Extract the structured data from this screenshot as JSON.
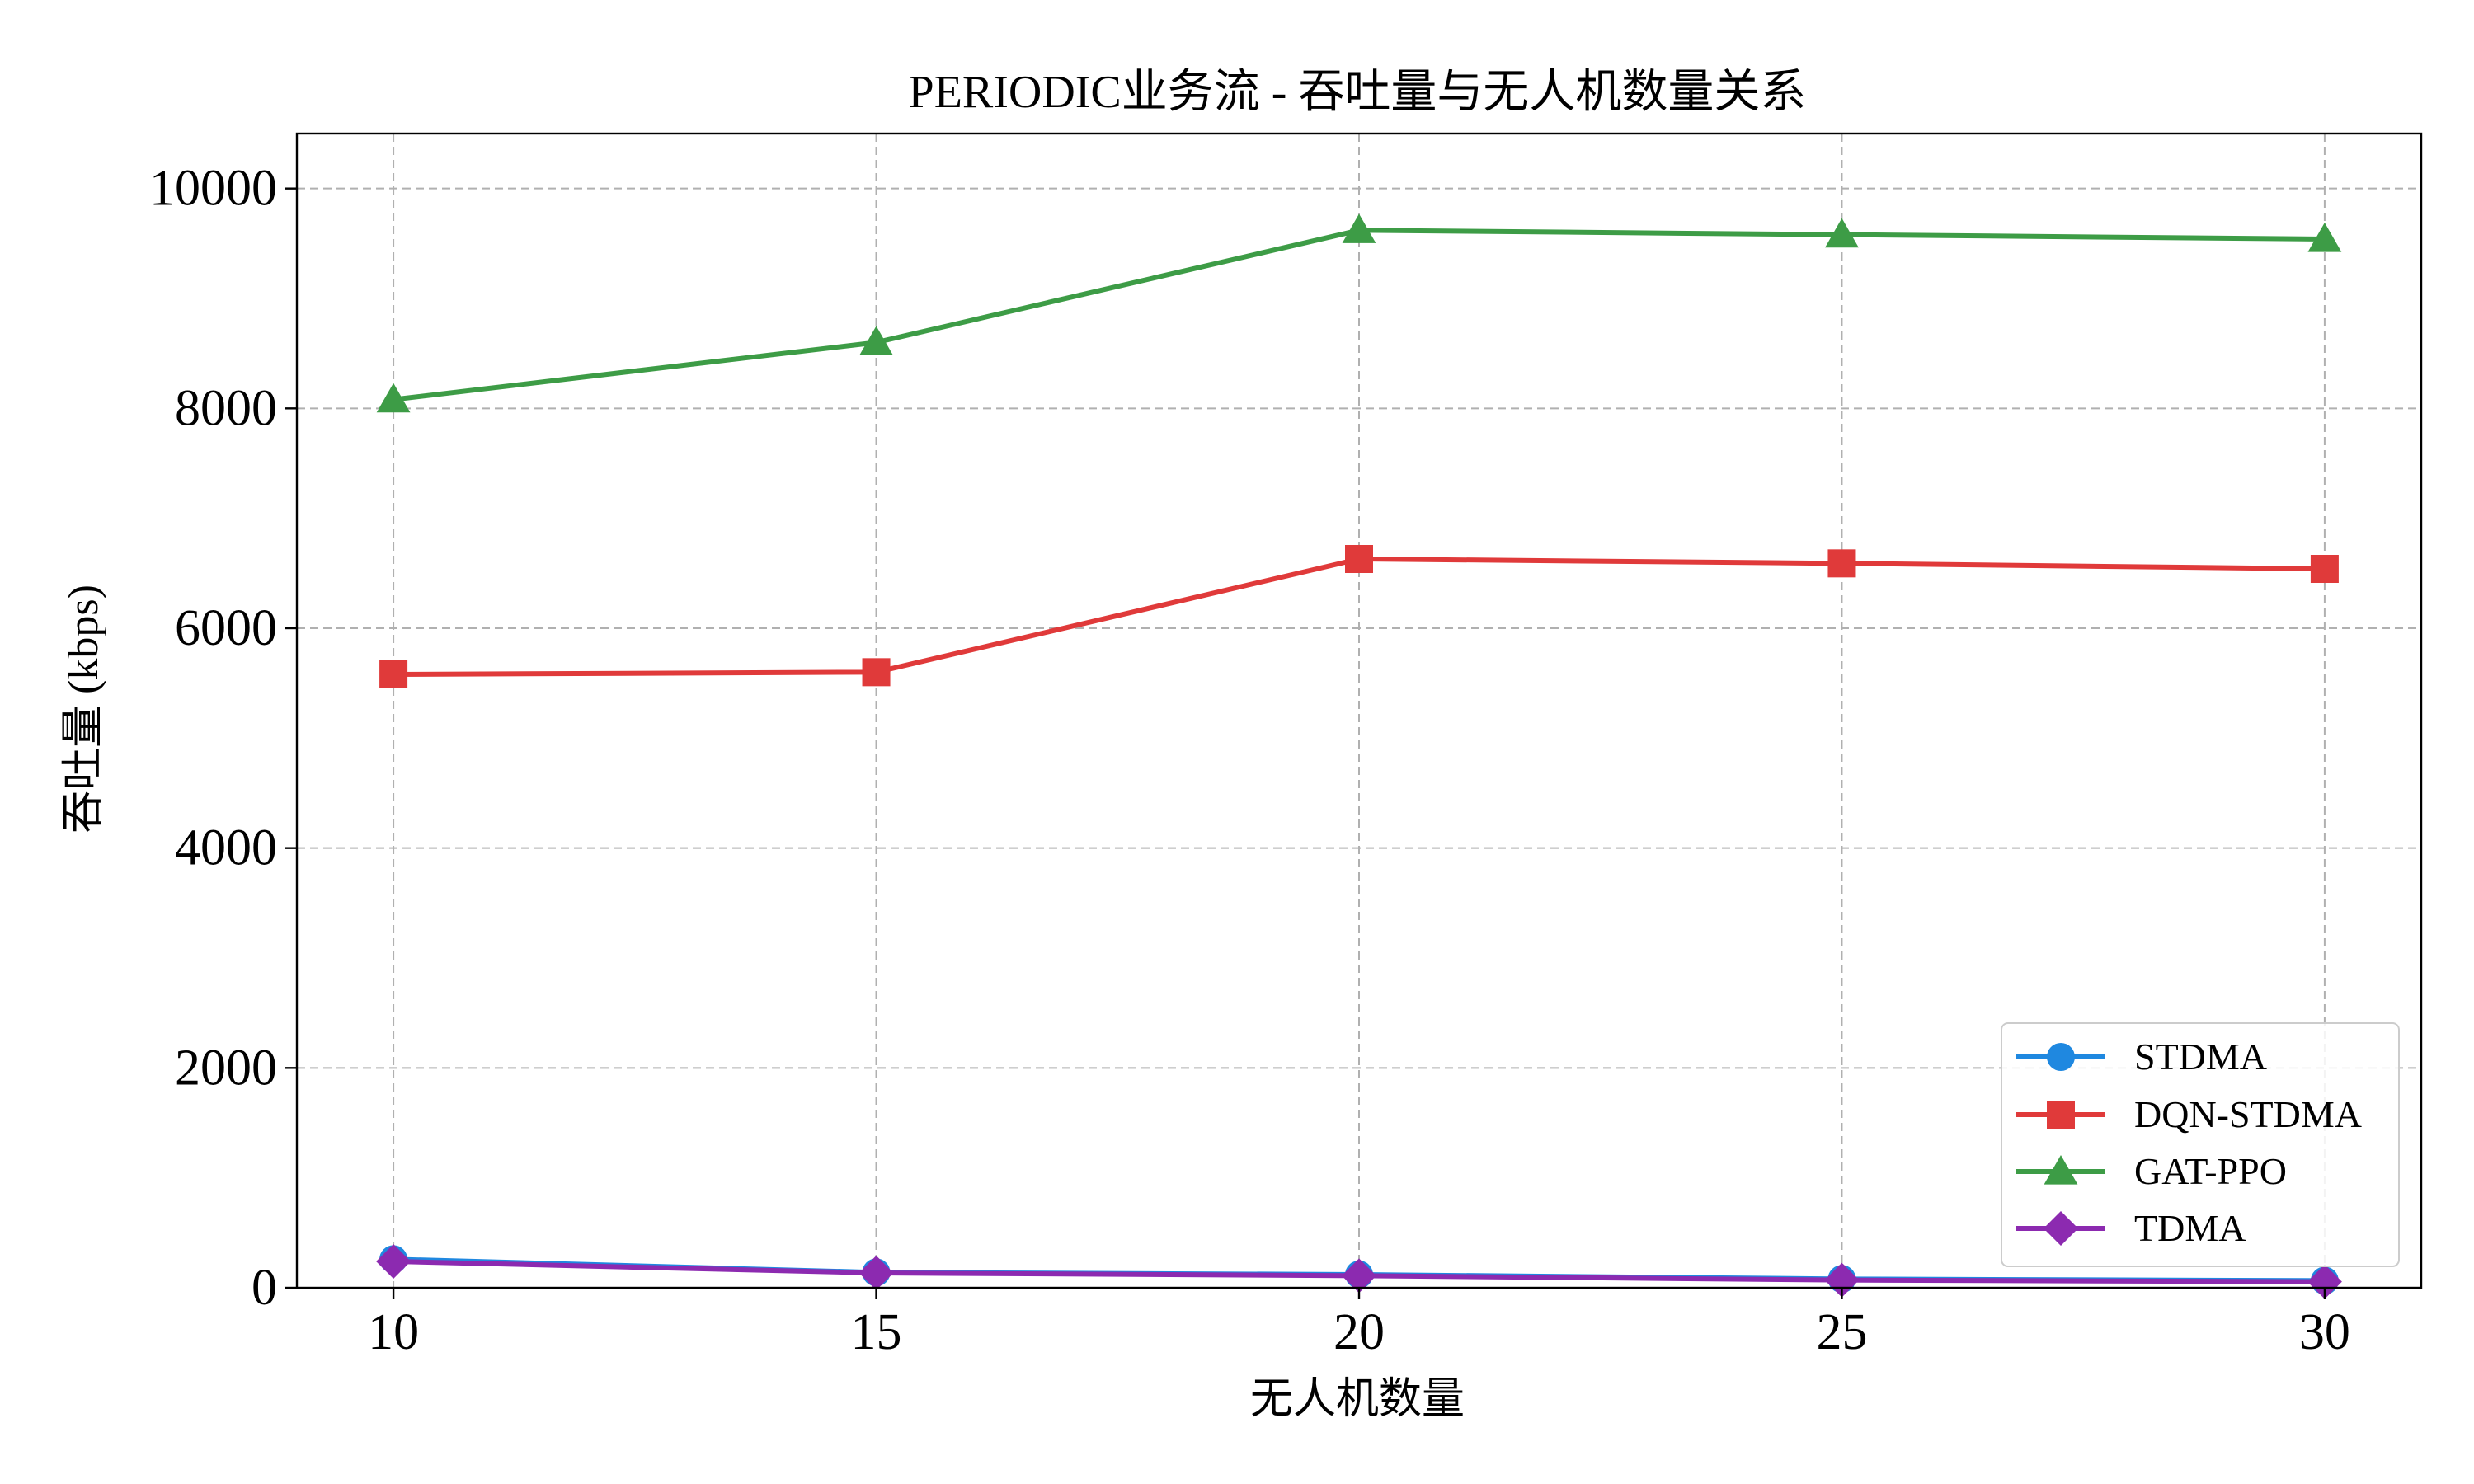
{
  "chart_data": {
    "type": "line",
    "title": "PERIODIC业务流 - 吞吐量与无人机数量关系",
    "xlabel": "无人机数量",
    "ylabel": "吞吐量 (kbps)",
    "x": [
      10,
      15,
      20,
      25,
      30
    ],
    "xlim": [
      9,
      31
    ],
    "ylim": [
      0,
      10500
    ],
    "xticks": [
      "10",
      "15",
      "20",
      "25",
      "30"
    ],
    "yticks": [
      "0",
      "2000",
      "4000",
      "6000",
      "8000",
      "10000"
    ],
    "grid": true,
    "legend_position": "lower-right",
    "series": [
      {
        "name": "STDMA",
        "color": "#1f88e0",
        "marker": "circle",
        "values": [
          260,
          140,
          120,
          80,
          65
        ]
      },
      {
        "name": "DQN-STDMA",
        "color": "#e03a3a",
        "marker": "square",
        "values": [
          5580,
          5600,
          6630,
          6590,
          6540
        ]
      },
      {
        "name": "GAT-PPO",
        "color": "#3d9c46",
        "marker": "triangle",
        "values": [
          8080,
          8600,
          9620,
          9580,
          9540
        ]
      },
      {
        "name": "TDMA",
        "color": "#8c2ab0",
        "marker": "diamond",
        "values": [
          240,
          135,
          110,
          70,
          55
        ]
      }
    ]
  }
}
